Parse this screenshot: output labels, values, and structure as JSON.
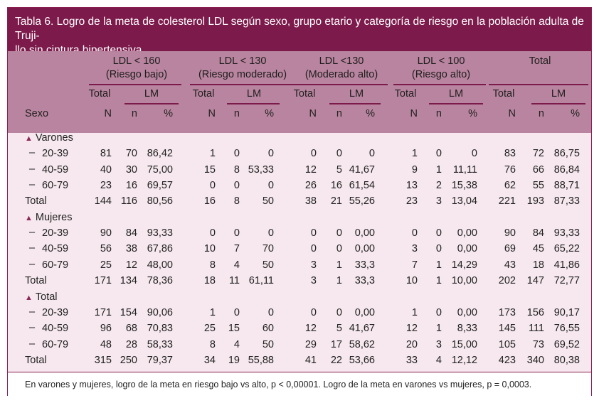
{
  "title": "Tabla 6. Logro de la meta de colesterol LDL según sexo, grupo etario y categoría de riesgo en la población adulta de Trujillo sin cintura hipertensiva",
  "title_line1": "Tabla 6. Logro de la meta de colesterol LDL según sexo, grupo etario y categoría de riesgo en la población adulta de Truji-",
  "title_line2": "llo sin cintura hipertensiva",
  "header": {
    "row_label": "Sexo",
    "groups": [
      {
        "l1": "LDL < 160",
        "l2": "(Riesgo bajo)"
      },
      {
        "l1": "LDL < 130",
        "l2": "(Riesgo moderado)"
      },
      {
        "l1": "LDL <130",
        "l2": "(Moderado alto)"
      },
      {
        "l1": "LDL < 100",
        "l2": "(Riesgo alto)"
      },
      {
        "l1": "Total",
        "l2": ""
      }
    ],
    "sub_total": "Total",
    "sub_lm": "LM",
    "col_n_upper": "N",
    "col_n_lower": "n",
    "col_pct": "%"
  },
  "sections": [
    {
      "label": "Varones",
      "rows": [
        {
          "label": "20-39",
          "values": [
            "81",
            "70",
            "86,42",
            "1",
            "0",
            "0",
            "0",
            "0",
            "0",
            "1",
            "0",
            "0",
            "83",
            "72",
            "86,75"
          ]
        },
        {
          "label": "40-59",
          "values": [
            "40",
            "30",
            "75,00",
            "15",
            "8",
            "53,33",
            "12",
            "5",
            "41,67",
            "9",
            "1",
            "11,11",
            "76",
            "66",
            "86,84"
          ]
        },
        {
          "label": "60-79",
          "values": [
            "23",
            "16",
            "69,57",
            "0",
            "0",
            "0",
            "26",
            "16",
            "61,54",
            "13",
            "2",
            "15,38",
            "62",
            "55",
            "88,71"
          ]
        },
        {
          "label": "Total",
          "values": [
            "144",
            "116",
            "80,56",
            "16",
            "8",
            "50",
            "38",
            "21",
            "55,26",
            "23",
            "3",
            "13,04",
            "221",
            "193",
            "87,33"
          ]
        }
      ]
    },
    {
      "label": "Mujeres",
      "rows": [
        {
          "label": "20-39",
          "values": [
            "90",
            "84",
            "93,33",
            "0",
            "0",
            "0",
            "0",
            "0",
            "0,00",
            "0",
            "0",
            "0,00",
            "90",
            "84",
            "93,33"
          ]
        },
        {
          "label": "40-59",
          "values": [
            "56",
            "38",
            "67,86",
            "10",
            "7",
            "70",
            "0",
            "0",
            "0,00",
            "3",
            "0",
            "0,00",
            "69",
            "45",
            "65,22"
          ]
        },
        {
          "label": "60-79",
          "values": [
            "25",
            "12",
            "48,00",
            "8",
            "4",
            "50",
            "3",
            "1",
            "33,3",
            "7",
            "1",
            "14,29",
            "43",
            "18",
            "41,86"
          ]
        },
        {
          "label": "Total",
          "values": [
            "171",
            "134",
            "78,36",
            "18",
            "11",
            "61,11",
            "3",
            "1",
            "33,3",
            "10",
            "1",
            "10,00",
            "202",
            "147",
            "72,77"
          ]
        }
      ]
    },
    {
      "label": "Total",
      "rows": [
        {
          "label": "20-39",
          "values": [
            "171",
            "154",
            "90,06",
            "1",
            "0",
            "0",
            "0",
            "0",
            "0,00",
            "1",
            "0",
            "0,00",
            "173",
            "156",
            "90,17"
          ]
        },
        {
          "label": "40-59",
          "values": [
            "96",
            "68",
            "70,83",
            "25",
            "15",
            "60",
            "12",
            "5",
            "41,67",
            "12",
            "1",
            "8,33",
            "145",
            "111",
            "76,55"
          ]
        },
        {
          "label": "60-79",
          "values": [
            "48",
            "28",
            "58,33",
            "8",
            "4",
            "50",
            "29",
            "17",
            "58,62",
            "20",
            "3",
            "15,00",
            "105",
            "73",
            "69,52"
          ]
        },
        {
          "label": "Total",
          "values": [
            "315",
            "250",
            "79,37",
            "34",
            "19",
            "55,88",
            "41",
            "22",
            "53,66",
            "33",
            "4",
            "12,12",
            "423",
            "340",
            "80,38"
          ]
        }
      ]
    }
  ],
  "footnote": "En varones y mujeres, logro de la meta en riesgo bajo vs alto, p < 0,00001. Logro de la meta en varones vs mujeres, p = 0,0003.",
  "colors": {
    "title_bg": "#7b1a4b",
    "header_bg": "#b9849f",
    "body_bg": "#f6e8ee",
    "accent": "#8b2a5a"
  }
}
